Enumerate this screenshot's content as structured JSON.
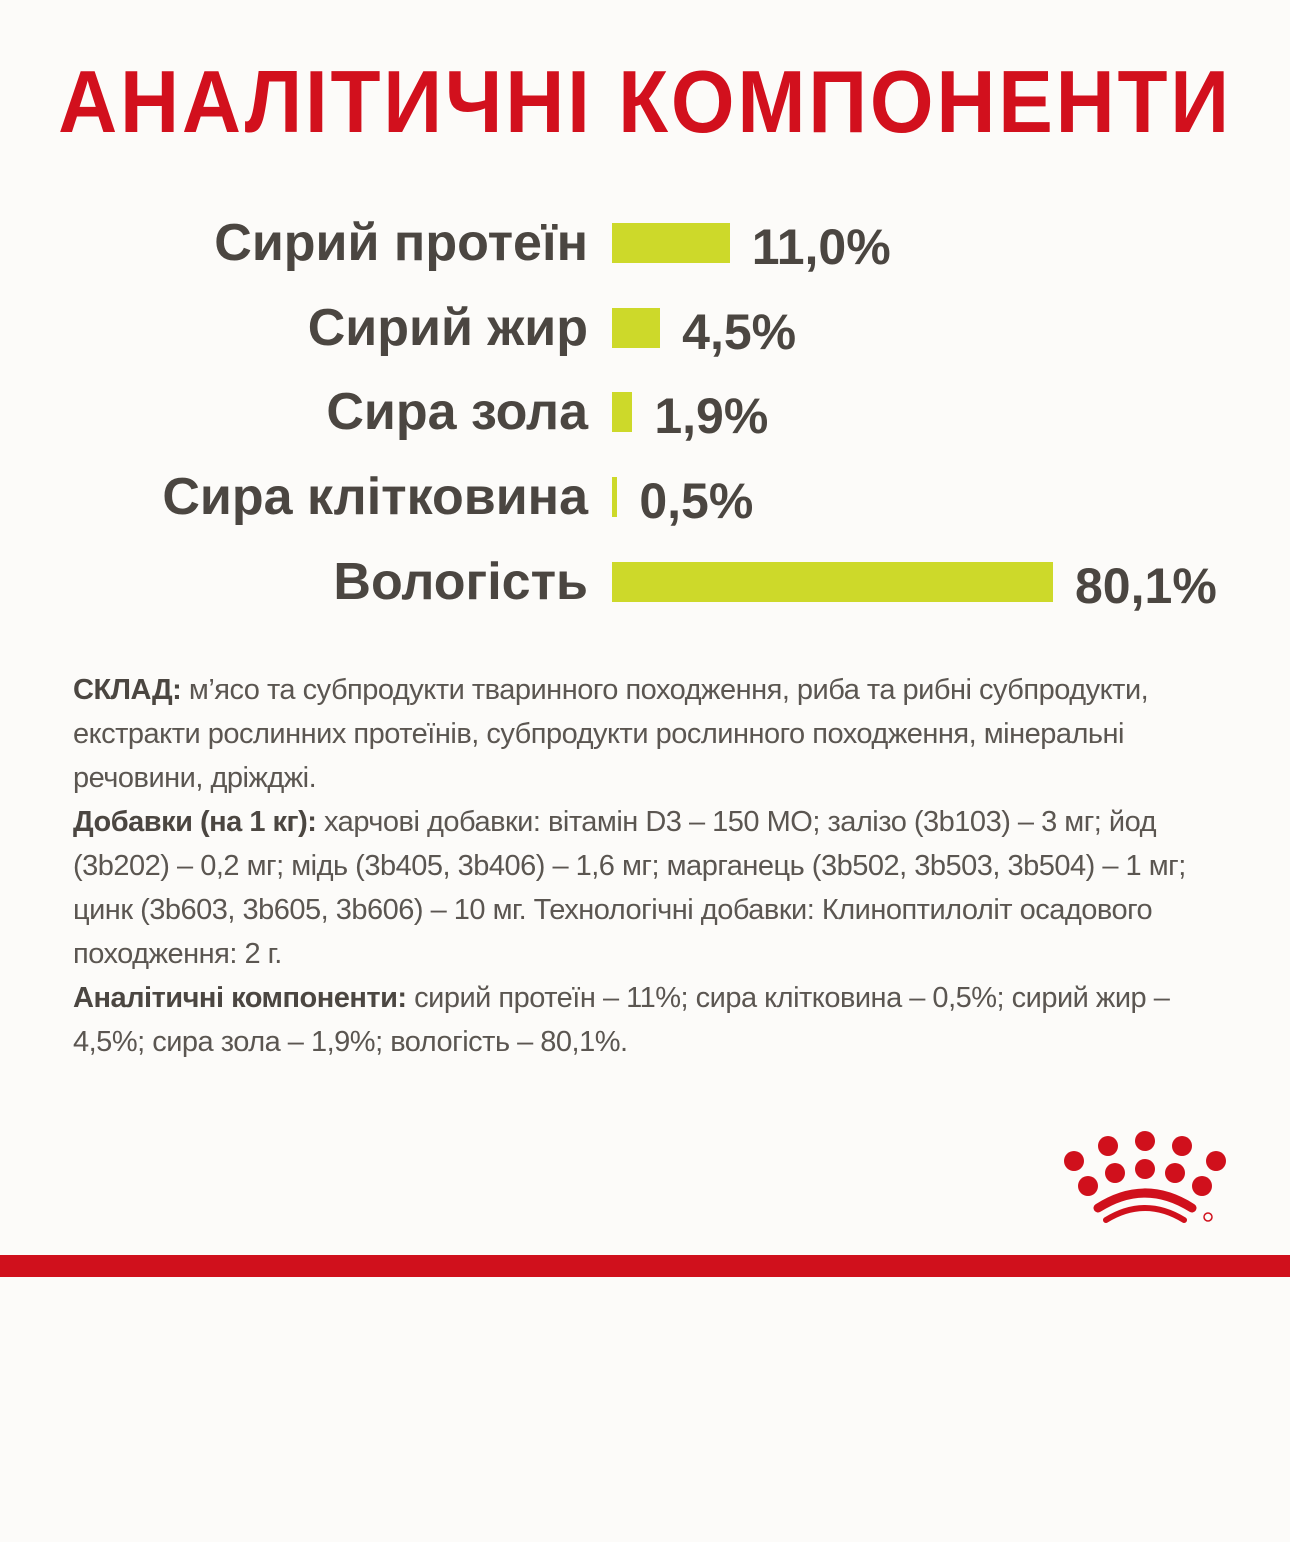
{
  "colors": {
    "title": "#d2101d",
    "bar": "#cdd92a",
    "text": "#4b4641",
    "brand_red": "#d0101c"
  },
  "chart_data": {
    "type": "bar",
    "orientation": "horizontal",
    "title": "АНАЛІТИЧНІ КОМПОНЕНТИ",
    "categories": [
      "Сирий протеїн",
      "Сирий жир",
      "Сира зола",
      "Сира клітковина",
      "Вологість"
    ],
    "values": [
      11.0,
      4.5,
      1.9,
      0.5,
      80.1
    ],
    "value_labels": [
      "11,0%",
      "4,5%",
      "1,9%",
      "0,5%",
      "80,1%"
    ],
    "unit": "%",
    "grid": false
  },
  "composition": {
    "p1_label": "СКЛАД:",
    "p1_text": " м’ясо та субпродукти тваринного походження, риба та рибні субпродукти, екстракти рослинних протеїнів, субпродукти рослинного походження, мінеральні речовини, дріжджі.",
    "p2_label": "Добавки (на 1 кг):",
    "p2_text": " харчові добавки: вітамін D3 – 150 МО; залізо (3b103) – 3 мг; йод (3b202) – 0,2 мг; мідь (3b405, 3b406) – 1,6 мг; марганець (3b502, 3b503, 3b504) – 1 мг; цинк (3b603, 3b605, 3b606) – 10 мг. Технологічні добавки: Клиноптилоліт осадового походження: 2 г.",
    "p3_label": "Аналітичні компоненти:",
    "p3_text": " сирий протеїн – 11%; сира клітковина – 0,5%; сирий жир – 4,5%; сира зола – 1,9%; вологість – 80,1%."
  },
  "logo": {
    "icon": "royal-canin-crown-icon"
  }
}
